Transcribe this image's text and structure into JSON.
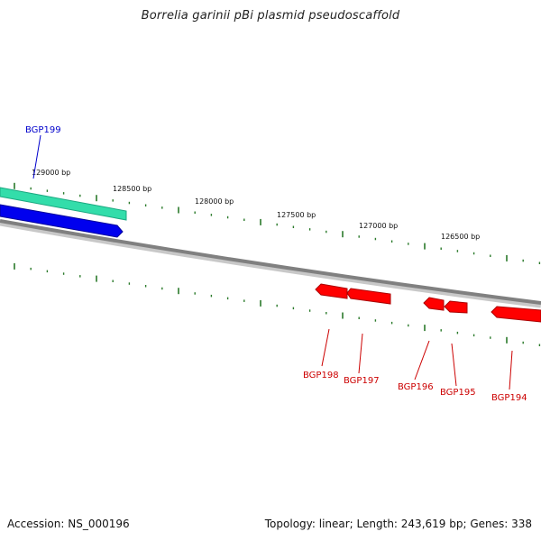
{
  "title": "Borrelia garinii pBi plasmid pseudoscaffold",
  "footer": {
    "accession": "Accession: NS_000196",
    "summary": "Topology: linear; Length: 243,619 bp; Genes: 338"
  },
  "colors": {
    "backbone": "#808080",
    "tick": "#2a7a2a",
    "gene_reverse": "#ff0000",
    "gene_forward_blue": "#0000ee",
    "gene_forward_teal": "#33ddaa",
    "label_blue": "#0000cc",
    "label_red": "#cc0000"
  },
  "ruler_labels": [
    "129000 bp",
    "128500 bp",
    "128000 bp",
    "127500 bp",
    "127000 bp",
    "126500 bp"
  ],
  "genes": [
    {
      "name": "BGP199",
      "strand": "forward",
      "color": "blue"
    },
    {
      "name": "BGP198",
      "strand": "reverse",
      "color": "red"
    },
    {
      "name": "BGP197",
      "strand": "reverse",
      "color": "red"
    },
    {
      "name": "BGP196",
      "strand": "reverse",
      "color": "red"
    },
    {
      "name": "BGP195",
      "strand": "reverse",
      "color": "red"
    },
    {
      "name": "BGP194",
      "strand": "reverse",
      "color": "red"
    }
  ]
}
